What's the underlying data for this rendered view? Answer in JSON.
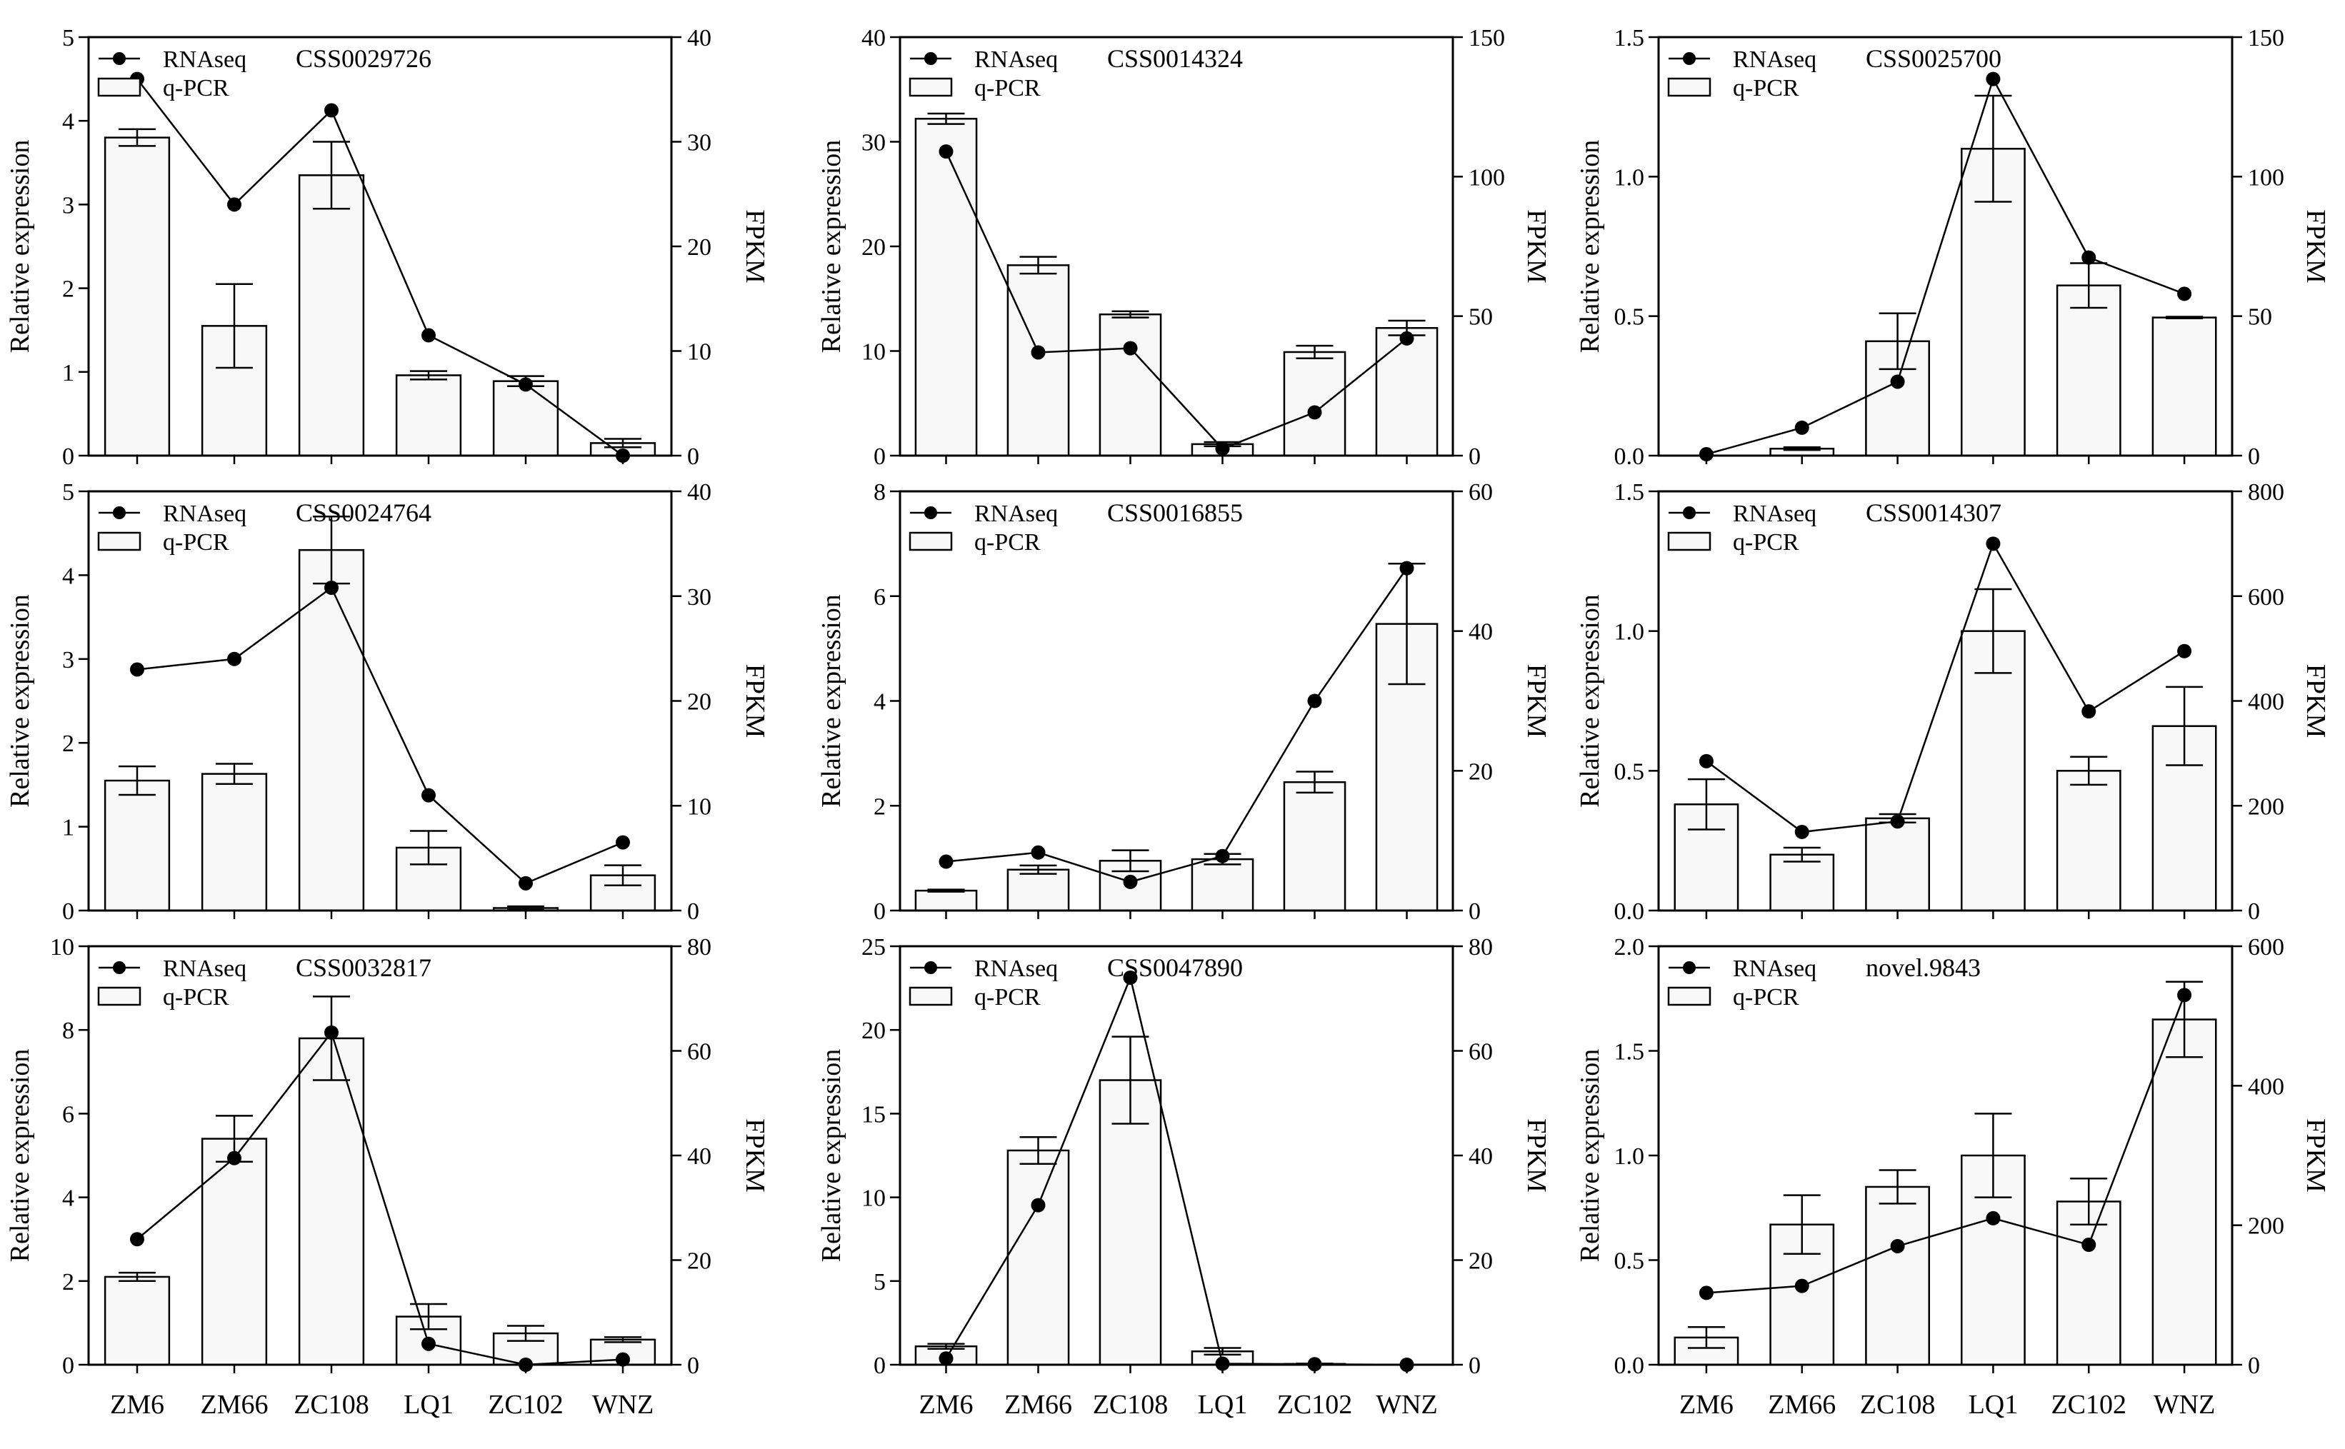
{
  "categories": [
    "ZM6",
    "ZM66",
    "ZC108",
    "LQ1",
    "ZC102",
    "WNZ"
  ],
  "legend": {
    "line": "RNAseq",
    "bar": "q-PCR"
  },
  "left_ylabel": "Relative expression",
  "right_ylabel": "FPKM",
  "colors": {
    "bar_fill": "#f7f8f7",
    "ink": "#000000"
  },
  "chart_data": [
    {
      "type": "bar+line",
      "gene": "CSS0029726",
      "left_ylim": [
        0,
        5
      ],
      "left_ticks": [
        "0",
        "1",
        "2",
        "3",
        "4",
        "5"
      ],
      "right_ylim": [
        0,
        40
      ],
      "right_ticks": [
        "0",
        "10",
        "20",
        "30",
        "40"
      ],
      "qpcr": [
        3.8,
        1.55,
        3.35,
        0.96,
        0.89,
        0.15
      ],
      "qpcr_err": [
        0.1,
        0.5,
        0.4,
        0.05,
        0.06,
        0.05
      ],
      "rnaseq": [
        36,
        24,
        33,
        11.5,
        6.8,
        0
      ]
    },
    {
      "type": "bar+line",
      "gene": "CSS0014324",
      "left_ylim": [
        0,
        40
      ],
      "left_ticks": [
        "0",
        "10",
        "20",
        "30",
        "40"
      ],
      "right_ylim": [
        0,
        150
      ],
      "right_ticks": [
        "0",
        "50",
        "100",
        "150"
      ],
      "qpcr": [
        32.2,
        18.2,
        13.5,
        1.1,
        9.9,
        12.2
      ],
      "qpcr_err": [
        0.5,
        0.8,
        0.3,
        0.2,
        0.6,
        0.7
      ],
      "rnaseq": [
        109,
        37,
        38.5,
        2.5,
        15.5,
        42
      ]
    },
    {
      "type": "bar+line",
      "gene": "CSS0025700",
      "left_ylim": [
        0,
        1.5
      ],
      "left_ticks": [
        "0.0",
        "0.5",
        "1.0",
        "1.5"
      ],
      "right_ylim": [
        0,
        150
      ],
      "right_ticks": [
        "0",
        "50",
        "100",
        "150"
      ],
      "qpcr": [
        0.0,
        0.025,
        0.41,
        1.1,
        0.61,
        0.495
      ],
      "qpcr_err": [
        0.0,
        0.005,
        0.1,
        0.19,
        0.08,
        0.003
      ],
      "rnaseq": [
        0.5,
        10,
        26.5,
        135,
        71,
        58
      ]
    },
    {
      "type": "bar+line",
      "gene": "CSS0024764",
      "left_ylim": [
        0,
        5
      ],
      "left_ticks": [
        "0",
        "1",
        "2",
        "3",
        "4",
        "5"
      ],
      "right_ylim": [
        0,
        40
      ],
      "right_ticks": [
        "0",
        "10",
        "20",
        "30",
        "40"
      ],
      "qpcr": [
        1.55,
        1.63,
        4.3,
        0.75,
        0.03,
        0.42
      ],
      "qpcr_err": [
        0.17,
        0.12,
        0.4,
        0.2,
        0.02,
        0.12
      ],
      "rnaseq": [
        23,
        24,
        30.8,
        11,
        2.6,
        6.5
      ]
    },
    {
      "type": "bar+line",
      "gene": "CSS0016855",
      "left_ylim": [
        0,
        8
      ],
      "left_ticks": [
        "0",
        "2",
        "4",
        "6",
        "8"
      ],
      "right_ylim": [
        0,
        60
      ],
      "right_ticks": [
        "0",
        "20",
        "40",
        "60"
      ],
      "qpcr": [
        0.38,
        0.78,
        0.95,
        0.98,
        2.45,
        5.47
      ],
      "qpcr_err": [
        0.02,
        0.08,
        0.2,
        0.1,
        0.2,
        1.15
      ],
      "rnaseq": [
        7,
        8.3,
        4.1,
        7.8,
        30,
        49
      ]
    },
    {
      "type": "bar+line",
      "gene": "CSS0014307",
      "left_ylim": [
        0,
        1.5
      ],
      "left_ticks": [
        "0.0",
        "0.5",
        "1.0",
        "1.5"
      ],
      "right_ylim": [
        0,
        800
      ],
      "right_ticks": [
        "0",
        "200",
        "400",
        "600",
        "800"
      ],
      "qpcr": [
        0.38,
        0.2,
        0.33,
        1.0,
        0.5,
        0.66
      ],
      "qpcr_err": [
        0.09,
        0.025,
        0.015,
        0.15,
        0.05,
        0.14
      ],
      "rnaseq": [
        285,
        150,
        170,
        700,
        380,
        495
      ]
    },
    {
      "type": "bar+line",
      "gene": "CSS0032817",
      "left_ylim": [
        0,
        10
      ],
      "left_ticks": [
        "0",
        "2",
        "4",
        "6",
        "8",
        "10"
      ],
      "right_ylim": [
        0,
        80
      ],
      "right_ticks": [
        "0",
        "20",
        "40",
        "60",
        "80"
      ],
      "qpcr": [
        2.1,
        5.4,
        7.8,
        1.15,
        0.75,
        0.6
      ],
      "qpcr_err": [
        0.1,
        0.55,
        1.0,
        0.3,
        0.18,
        0.06
      ],
      "rnaseq": [
        24,
        39.5,
        63.5,
        4,
        0,
        1
      ]
    },
    {
      "type": "bar+line",
      "gene": "CSS0047890",
      "left_ylim": [
        0,
        25
      ],
      "left_ticks": [
        "0",
        "5",
        "10",
        "15",
        "20",
        "25"
      ],
      "right_ylim": [
        0,
        80
      ],
      "right_ticks": [
        "0",
        "20",
        "40",
        "60",
        "80"
      ],
      "qpcr": [
        1.1,
        12.8,
        17.0,
        0.8,
        0.05,
        0.0
      ],
      "qpcr_err": [
        0.15,
        0.8,
        2.6,
        0.2,
        0.02,
        0.0
      ],
      "rnaseq": [
        1.2,
        30.5,
        74,
        0.2,
        0.1,
        0
      ]
    },
    {
      "type": "bar+line",
      "gene": "novel.9843",
      "left_ylim": [
        0,
        2.0
      ],
      "left_ticks": [
        "0.0",
        "0.5",
        "1.0",
        "1.5",
        "2.0"
      ],
      "right_ylim": [
        0,
        600
      ],
      "right_ticks": [
        "0",
        "200",
        "400",
        "600"
      ],
      "qpcr": [
        0.13,
        0.67,
        0.85,
        1.0,
        0.78,
        1.65
      ],
      "qpcr_err": [
        0.05,
        0.14,
        0.08,
        0.2,
        0.11,
        0.18
      ],
      "rnaseq": [
        103,
        113,
        170,
        210,
        172,
        530
      ]
    }
  ]
}
